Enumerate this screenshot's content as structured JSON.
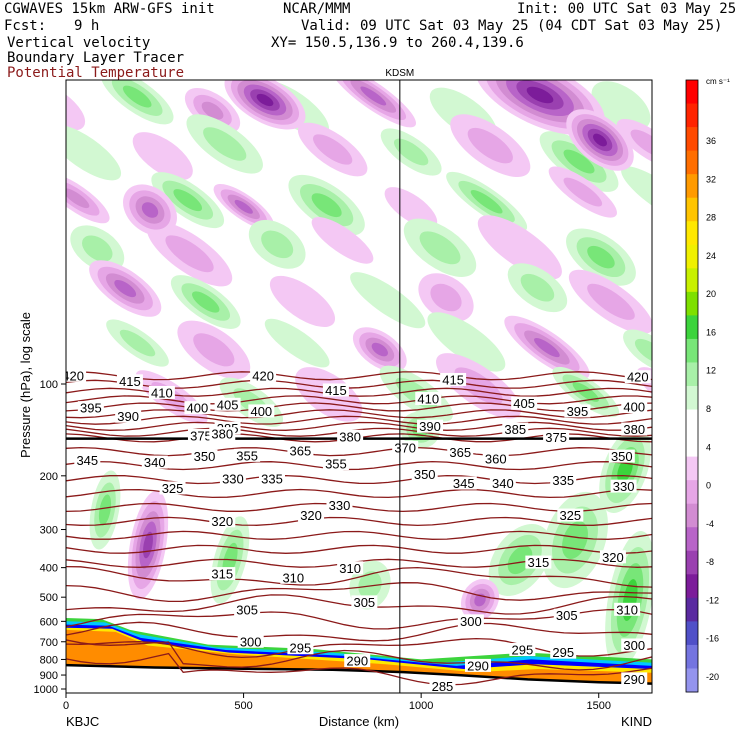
{
  "header": {
    "model": "CGWAVES 15km ARW-GFS init",
    "org": "NCAR/MMM",
    "init": "Init: 00 UTC Sat 03 May 25",
    "fcst_label": "Fcst:",
    "fcst_value": "9 h",
    "valid": "Valid: 09 UTC Sat 03 May 25 (04 CDT Sat 03 May 25)",
    "field1": "Vertical velocity",
    "field2": "Boundary Layer Tracer",
    "field3": "Potential Temperature",
    "xy": "XY= 150.5,136.9 to 260.4,139.6",
    "field3_color": "#8b1a1a"
  },
  "chart_data": {
    "type": "heatmap",
    "title": "",
    "xlabel": "Distance (km)",
    "ylabel": "Pressure (hPa), log scale",
    "x_range": [
      0,
      1650
    ],
    "x_ticks": [
      "0",
      "500",
      "1000",
      "1500"
    ],
    "y_ticks": [
      "100",
      "200",
      "300",
      "400",
      "500",
      "600",
      "700",
      "800",
      "900",
      "1000"
    ],
    "y_log": true,
    "left_station": "KBJC",
    "right_station": "KIND",
    "marker_station": "KDSM",
    "marker_distance_km": 940,
    "colorbar": {
      "unit": "cm s⁻¹",
      "labels": [
        "36",
        "32",
        "28",
        "24",
        "20",
        "16",
        "12",
        "8",
        "4",
        "0",
        "-4",
        "-8",
        "-12",
        "-16",
        "-20"
      ],
      "colors": [
        "#ff0000",
        "#ff2400",
        "#ff4a00",
        "#ff6e00",
        "#ff9a00",
        "#ffc400",
        "#ffe800",
        "#f0f000",
        "#c8f000",
        "#7ee000",
        "#3cd43c",
        "#78e678",
        "#a8f0a8",
        "#d2f8d2",
        "#ffffff",
        "#ffffff",
        "#f4c8f4",
        "#e6a6e6",
        "#d28cd2",
        "#b864c8",
        "#9a40b0",
        "#7c1c9a",
        "#5a2aa0",
        "#5050c8",
        "#7474e0",
        "#9494ee"
      ]
    },
    "contour_label_color": "#8b1a1a",
    "theta_labels": [
      {
        "t": "420",
        "d": 20,
        "p": 94
      },
      {
        "t": "415",
        "d": 180,
        "p": 98
      },
      {
        "t": "410",
        "d": 270,
        "p": 107
      },
      {
        "t": "420",
        "d": 555,
        "p": 94
      },
      {
        "t": "415",
        "d": 760,
        "p": 105
      },
      {
        "t": "415",
        "d": 1090,
        "p": 97
      },
      {
        "t": "420",
        "d": 1610,
        "p": 95
      },
      {
        "t": "395",
        "d": 70,
        "p": 120
      },
      {
        "t": "390",
        "d": 175,
        "p": 128
      },
      {
        "t": "400",
        "d": 370,
        "p": 120
      },
      {
        "t": "405",
        "d": 455,
        "p": 117
      },
      {
        "t": "400",
        "d": 550,
        "p": 123
      },
      {
        "t": "410",
        "d": 1020,
        "p": 112
      },
      {
        "t": "405",
        "d": 1290,
        "p": 116
      },
      {
        "t": "395",
        "d": 1440,
        "p": 123
      },
      {
        "t": "400",
        "d": 1600,
        "p": 119
      },
      {
        "t": "385",
        "d": 455,
        "p": 140
      },
      {
        "t": "390",
        "d": 1025,
        "p": 138
      },
      {
        "t": "385",
        "d": 1265,
        "p": 141
      },
      {
        "t": "380",
        "d": 1600,
        "p": 141
      },
      {
        "t": "375",
        "d": 380,
        "p": 148
      },
      {
        "t": "380",
        "d": 440,
        "p": 146
      },
      {
        "t": "380",
        "d": 800,
        "p": 149
      },
      {
        "t": "375",
        "d": 1380,
        "p": 150
      },
      {
        "t": "370",
        "d": 955,
        "p": 162
      },
      {
        "t": "365",
        "d": 1110,
        "p": 168
      },
      {
        "t": "360",
        "d": 1210,
        "p": 176
      },
      {
        "t": "365",
        "d": 660,
        "p": 166
      },
      {
        "t": "355",
        "d": 510,
        "p": 172
      },
      {
        "t": "355",
        "d": 760,
        "p": 183
      },
      {
        "t": "350",
        "d": 390,
        "p": 173
      },
      {
        "t": "350",
        "d": 1565,
        "p": 173
      },
      {
        "t": "345",
        "d": 60,
        "p": 178
      },
      {
        "t": "340",
        "d": 250,
        "p": 181
      },
      {
        "t": "345",
        "d": 1120,
        "p": 212
      },
      {
        "t": "340",
        "d": 1230,
        "p": 212
      },
      {
        "t": "335",
        "d": 1400,
        "p": 207
      },
      {
        "t": "350",
        "d": 1010,
        "p": 198
      },
      {
        "t": "330",
        "d": 1570,
        "p": 217
      },
      {
        "t": "330",
        "d": 470,
        "p": 205
      },
      {
        "t": "335",
        "d": 580,
        "p": 205
      },
      {
        "t": "325",
        "d": 300,
        "p": 220
      },
      {
        "t": "330",
        "d": 770,
        "p": 250
      },
      {
        "t": "325",
        "d": 1420,
        "p": 270
      },
      {
        "t": "320",
        "d": 440,
        "p": 282
      },
      {
        "t": "320",
        "d": 690,
        "p": 270
      },
      {
        "t": "320",
        "d": 1540,
        "p": 370
      },
      {
        "t": "315",
        "d": 440,
        "p": 420
      },
      {
        "t": "310",
        "d": 640,
        "p": 432
      },
      {
        "t": "310",
        "d": 800,
        "p": 402
      },
      {
        "t": "315",
        "d": 1330,
        "p": 385
      },
      {
        "t": "305",
        "d": 510,
        "p": 550
      },
      {
        "t": "305",
        "d": 840,
        "p": 520
      },
      {
        "t": "310",
        "d": 1580,
        "p": 550
      },
      {
        "t": "305",
        "d": 1410,
        "p": 575
      },
      {
        "t": "300",
        "d": 1140,
        "p": 600
      },
      {
        "t": "300",
        "d": 520,
        "p": 700
      },
      {
        "t": "295",
        "d": 660,
        "p": 735
      },
      {
        "t": "300",
        "d": 1600,
        "p": 720
      },
      {
        "t": "295",
        "d": 1285,
        "p": 745
      },
      {
        "t": "295",
        "d": 1400,
        "p": 760
      },
      {
        "t": "290",
        "d": 820,
        "p": 810
      },
      {
        "t": "290",
        "d": 1160,
        "p": 840
      },
      {
        "t": "290",
        "d": 1600,
        "p": 930
      },
      {
        "t": "285",
        "d": 1060,
        "p": 980
      }
    ],
    "sample_tag": "350"
  }
}
